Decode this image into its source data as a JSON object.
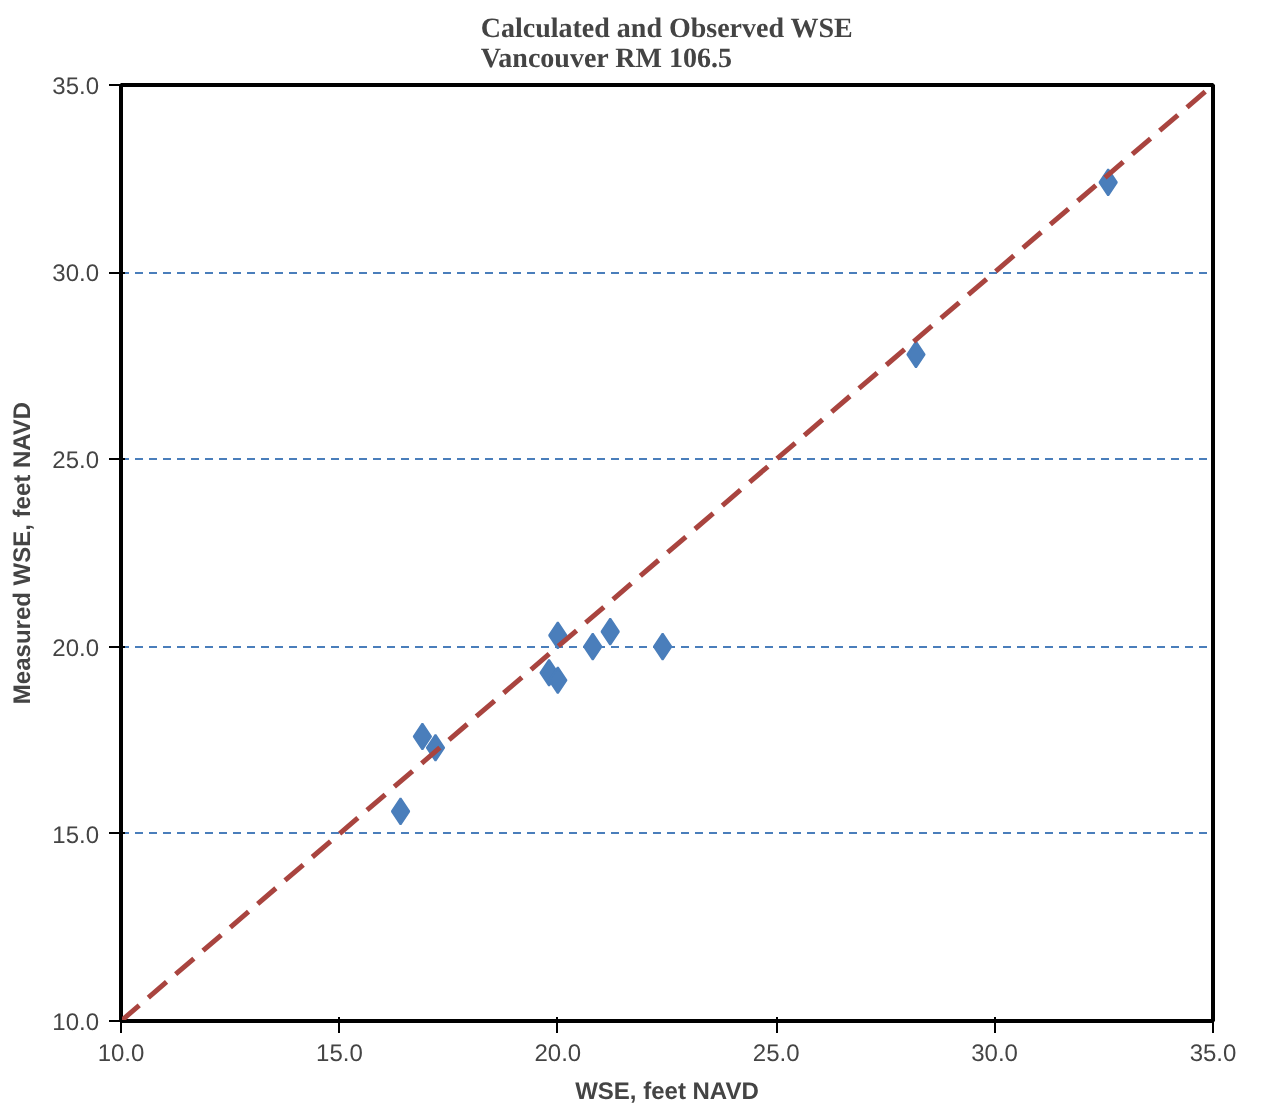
{
  "chart_data": {
    "type": "scatter",
    "title": "Calculated and Observed WSE\nVancouver  RM 106.5",
    "xlabel": "WSE, feet NAVD",
    "ylabel": "Measured WSE, feet NAVD",
    "xlim": [
      10,
      35
    ],
    "ylim": [
      10,
      35
    ],
    "xticks": [
      {
        "value": 10,
        "label": "10.0"
      },
      {
        "value": 15,
        "label": "15.0"
      },
      {
        "value": 20,
        "label": "20.0"
      },
      {
        "value": 25,
        "label": "25.0"
      },
      {
        "value": 30,
        "label": "30.0"
      },
      {
        "value": 35,
        "label": "35.0"
      }
    ],
    "yticks": [
      {
        "value": 10,
        "label": "10.0"
      },
      {
        "value": 15,
        "label": "15.0"
      },
      {
        "value": 20,
        "label": "20.0"
      },
      {
        "value": 25,
        "label": "25.0"
      },
      {
        "value": 30,
        "label": "30.0"
      },
      {
        "value": 35,
        "label": "35.0"
      }
    ],
    "grid": "y",
    "marker": "diamond",
    "series": [
      {
        "color": "#4a7ebb",
        "x": [
          16.4,
          16.9,
          17.2,
          19.8,
          20.0,
          20.0,
          20.8,
          21.2,
          22.4,
          28.2,
          32.6
        ],
        "values": [
          15.6,
          17.6,
          17.3,
          19.3,
          19.1,
          20.3,
          20.0,
          20.4,
          20.0,
          27.8,
          32.4
        ]
      },
      {
        "type": "line",
        "color": "#a9443f",
        "line_style": "dashed",
        "marker": "none",
        "x": [
          10,
          35
        ],
        "values": [
          10,
          35
        ]
      }
    ]
  }
}
